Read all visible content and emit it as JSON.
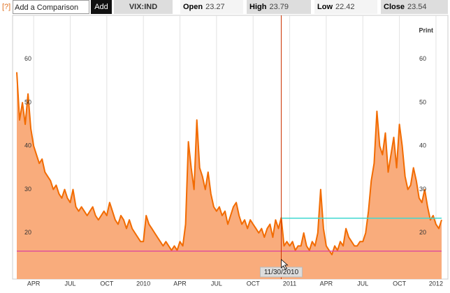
{
  "toolbar": {
    "help": "[?]",
    "comparison_placeholder": "Add a Comparison",
    "add_button": "Add",
    "symbol": "VIX:IND",
    "quote": [
      {
        "label": "Open",
        "value": 23.27
      },
      {
        "label": "High",
        "value": 23.79
      },
      {
        "label": "Low",
        "value": 22.42
      },
      {
        "label": "Close",
        "value": 23.54
      }
    ],
    "print": "Print"
  },
  "chart_data": {
    "type": "area",
    "series": [
      {
        "name": "VIX:IND",
        "color": "#f26b00",
        "fill": "#f9ac7c",
        "values": [
          57,
          46,
          50,
          45,
          52,
          44,
          40,
          38,
          36,
          37,
          34,
          33,
          32,
          30,
          31,
          29,
          28,
          30,
          28,
          27,
          30,
          26,
          25,
          26,
          25,
          24,
          25,
          26,
          24,
          23,
          24,
          25,
          24,
          27,
          25,
          23,
          22,
          24,
          23,
          21,
          23,
          21,
          20,
          19,
          18,
          18,
          24,
          22,
          21,
          20,
          19,
          18,
          17,
          18,
          17,
          16,
          17,
          16,
          18,
          17,
          22,
          41,
          35,
          30,
          46,
          35,
          33,
          30,
          34,
          29,
          26,
          25,
          26,
          24,
          25,
          22,
          24,
          26,
          27,
          24,
          22,
          23,
          21,
          23,
          22,
          21,
          20,
          21,
          19,
          21,
          22,
          19,
          23,
          21,
          23.5,
          17,
          18,
          17,
          18,
          16,
          17,
          17,
          20,
          17,
          16,
          18,
          17,
          20,
          30,
          21,
          17,
          16,
          15,
          17,
          16,
          18,
          17,
          21,
          19,
          18,
          17,
          17,
          18,
          18,
          20,
          25,
          32,
          36,
          48,
          40,
          38,
          43,
          34,
          38,
          42,
          35,
          45,
          40,
          33,
          30,
          31,
          35,
          32,
          28,
          27,
          30,
          26,
          23,
          24,
          22,
          21,
          23
        ]
      }
    ],
    "xlim": [
      0,
      151
    ],
    "xticks": [
      {
        "value": 6,
        "label": "APR"
      },
      {
        "value": 19,
        "label": "JUL"
      },
      {
        "value": 32,
        "label": "OCT"
      },
      {
        "value": 45,
        "label": "2010"
      },
      {
        "value": 58,
        "label": "APR"
      },
      {
        "value": 71,
        "label": "JUL"
      },
      {
        "value": 84,
        "label": "OCT"
      },
      {
        "value": 97,
        "label": "2011"
      },
      {
        "value": 110,
        "label": "APR"
      },
      {
        "value": 123,
        "label": "JUL"
      },
      {
        "value": 136,
        "label": "OCT"
      },
      {
        "value": 149,
        "label": "2012"
      }
    ],
    "ylim": [
      9.7,
      69.6
    ],
    "yticks": [
      20,
      30,
      40,
      50,
      60
    ],
    "grid": true,
    "crosshair": {
      "x": 94,
      "label": "11/30/2010",
      "color": "#cc3300"
    },
    "hlines": [
      {
        "value": 23.4,
        "color": "#40d8d0",
        "from_crosshair": true
      },
      {
        "value": 15.8,
        "color": "#e0509a",
        "from_crosshair": false
      }
    ]
  }
}
